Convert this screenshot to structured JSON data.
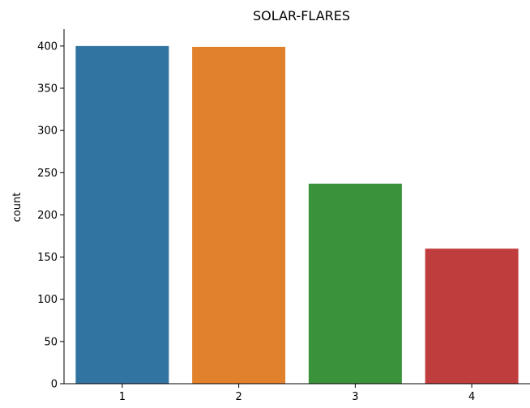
{
  "chart_data": {
    "type": "bar",
    "title": "SOLAR-FLARES",
    "xlabel": "",
    "ylabel": "count",
    "categories": [
      "1",
      "2",
      "3",
      "4"
    ],
    "values": [
      400,
      399,
      237,
      160
    ],
    "ylim": [
      0,
      420
    ],
    "yticks": [
      0,
      50,
      100,
      150,
      200,
      250,
      300,
      350,
      400
    ],
    "ytick_labels": [
      "0",
      "50",
      "100",
      "150",
      "200",
      "250",
      "300",
      "350",
      "400"
    ],
    "colors": [
      "#3274a1",
      "#e1812c",
      "#3a923a",
      "#c03d3e"
    ],
    "grid": false,
    "legend": "none"
  }
}
